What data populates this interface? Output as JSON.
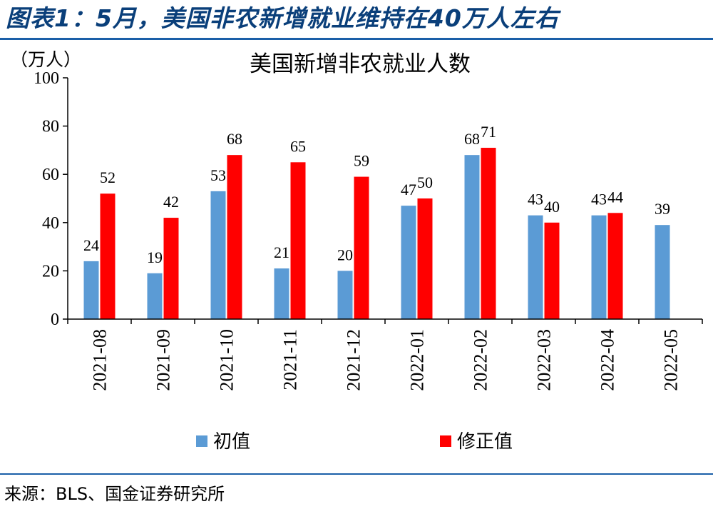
{
  "figure": {
    "title": "图表1：5月，美国非农新增就业维持在40万人左右",
    "source": "来源：BLS、国金证券研究所"
  },
  "chart_data": {
    "type": "bar",
    "title": "美国新增非农就业人数",
    "ylabel": "（万人）",
    "xlabel": "",
    "ylim": [
      0,
      100
    ],
    "yticks": [
      0,
      20,
      40,
      60,
      80,
      100
    ],
    "grid": false,
    "legend_position": "bottom",
    "categories": [
      "2021-08",
      "2021-09",
      "2021-10",
      "2021-11",
      "2021-12",
      "2022-01",
      "2022-02",
      "2022-03",
      "2022-04",
      "2022-05"
    ],
    "series": [
      {
        "name": "初值",
        "color": "#5b9bd5",
        "values": [
          24,
          19,
          53,
          21,
          20,
          47,
          68,
          43,
          43,
          39
        ]
      },
      {
        "name": "修正值",
        "color": "#ff0000",
        "values": [
          52,
          42,
          68,
          65,
          59,
          50,
          71,
          40,
          44,
          null
        ]
      }
    ],
    "data_labels": [
      [
        "24",
        "19",
        "53",
        "21",
        "20",
        "47",
        "68",
        "43",
        "43",
        "39"
      ],
      [
        "52",
        "42",
        "68",
        "65",
        "59",
        "50",
        "71",
        "40",
        "44",
        null
      ]
    ]
  }
}
